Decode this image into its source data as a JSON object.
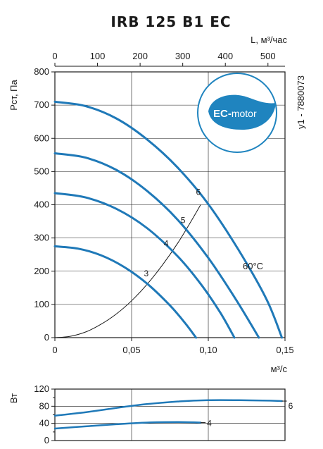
{
  "chart_data": [
    {
      "type": "line",
      "title": "IRB 125 B1 EC",
      "side_code": "y1 - 7880073",
      "badge": {
        "text_main": "EC-",
        "text_sub": "motor",
        "color": "#1f84bf"
      },
      "temperature_label": "60°C",
      "ylabel": "Рст, Па",
      "xlabel_bottom": "м³/с",
      "xlabel_top": "L, м³/час",
      "xlim": [
        0,
        0.15
      ],
      "ylim": [
        0,
        800
      ],
      "x_ticks": [
        0,
        0.05,
        0.1,
        0.15
      ],
      "x_tick_labels": [
        "0",
        "0,05",
        "0,10",
        "0,15"
      ],
      "y_ticks": [
        0,
        100,
        200,
        300,
        400,
        500,
        600,
        700,
        800
      ],
      "y_tick_labels": [
        "0",
        "100",
        "200",
        "300",
        "400",
        "500",
        "600",
        "700",
        "800"
      ],
      "top_ticks": [
        0,
        100,
        200,
        300,
        400,
        500
      ],
      "top_tick_labels": [
        "0",
        "100",
        "200",
        "300",
        "400",
        "500"
      ],
      "top_max": 540,
      "colors": {
        "curve": "#1f79b8",
        "system": "#1a1a1a",
        "grid": "#1a1a1a"
      },
      "series": [
        {
          "name": "3",
          "label": "3",
          "label_at": [
            0.058,
            185
          ],
          "x": [
            0,
            0.015,
            0.03,
            0.045,
            0.06,
            0.075,
            0.085,
            0.092
          ],
          "y": [
            275,
            268,
            248,
            213,
            163,
            97,
            43,
            0
          ]
        },
        {
          "name": "4",
          "label": "4",
          "label_at": [
            0.071,
            275
          ],
          "x": [
            0,
            0.02,
            0.04,
            0.06,
            0.08,
            0.095,
            0.108,
            0.117
          ],
          "y": [
            435,
            422,
            388,
            330,
            245,
            162,
            74,
            0
          ]
        },
        {
          "name": "5",
          "label": "5",
          "label_at": [
            0.082,
            345
          ],
          "x": [
            0,
            0.02,
            0.04,
            0.06,
            0.08,
            0.1,
            0.118,
            0.133
          ],
          "y": [
            555,
            542,
            505,
            442,
            355,
            240,
            115,
            0
          ]
        },
        {
          "name": "6",
          "label": "6",
          "label_at": [
            0.092,
            430
          ],
          "x": [
            0,
            0.02,
            0.04,
            0.06,
            0.08,
            0.1,
            0.12,
            0.138,
            0.148
          ],
          "y": [
            710,
            697,
            660,
            597,
            512,
            402,
            262,
            115,
            0
          ]
        }
      ],
      "system_curve": {
        "x": [
          0,
          0.01,
          0.02,
          0.03,
          0.04,
          0.05,
          0.06,
          0.07,
          0.08,
          0.09,
          0.095
        ],
        "y": [
          0,
          4,
          17,
          40,
          71,
          111,
          160,
          218,
          284,
          360,
          400
        ]
      }
    },
    {
      "type": "line",
      "ylabel": "Вт",
      "xlim": [
        0,
        0.15
      ],
      "ylim": [
        0,
        120
      ],
      "y_ticks": [
        0,
        40,
        80,
        120
      ],
      "y_tick_labels": [
        "0",
        "40",
        "80",
        "120"
      ],
      "y_minor_ticks": [
        20,
        60,
        100
      ],
      "series": [
        {
          "name": "6",
          "label": "6",
          "x": [
            0,
            0.02,
            0.04,
            0.06,
            0.08,
            0.1,
            0.12,
            0.14,
            0.148
          ],
          "y": [
            58,
            66,
            76,
            85,
            91,
            94,
            94,
            93,
            92
          ]
        },
        {
          "name": "4",
          "label": "4",
          "x": [
            0,
            0.02,
            0.04,
            0.06,
            0.08,
            0.095
          ],
          "y": [
            28,
            33,
            38,
            42,
            43,
            42
          ]
        }
      ]
    }
  ]
}
